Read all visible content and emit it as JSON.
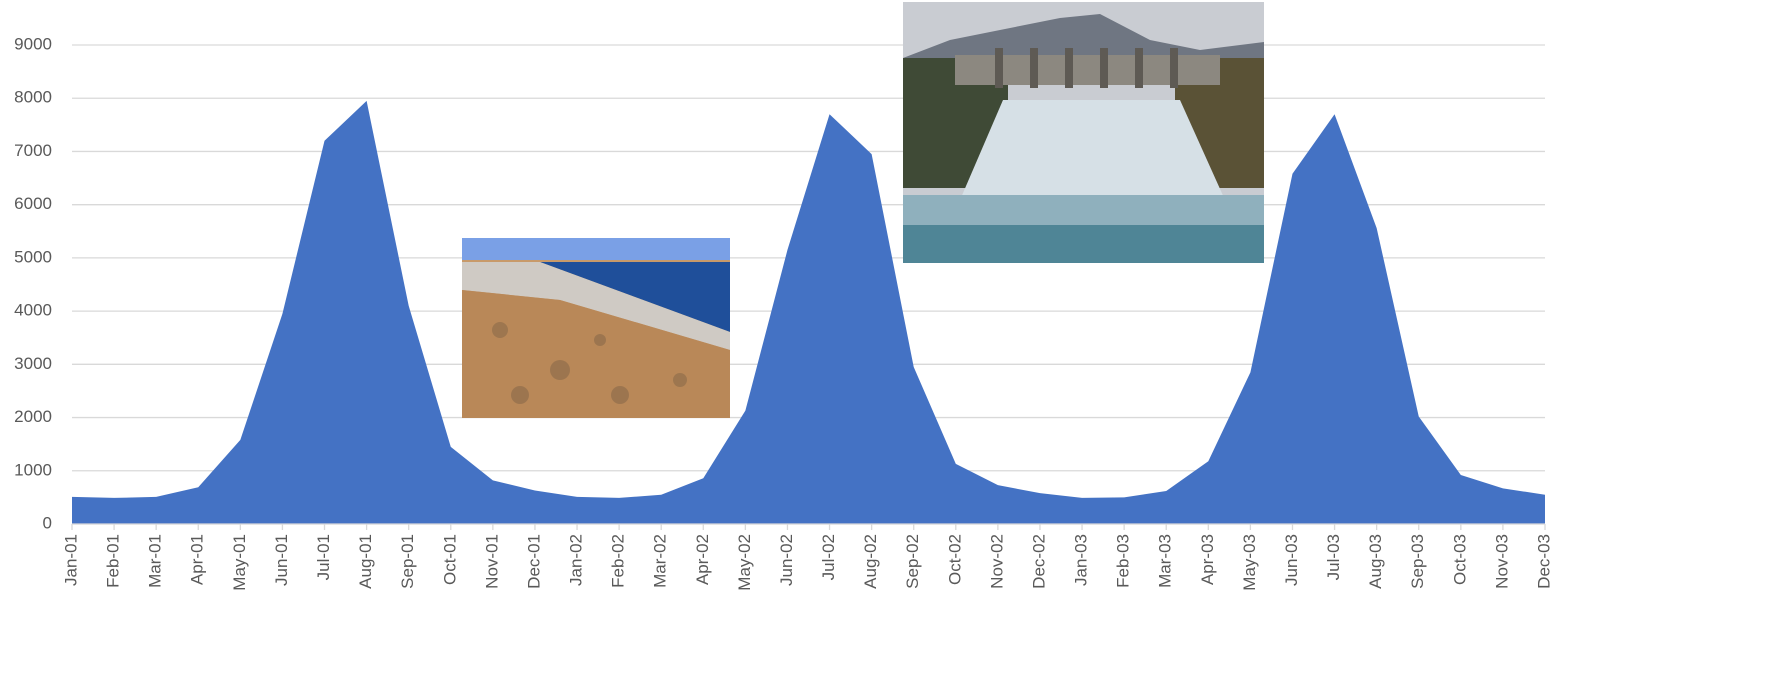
{
  "chart_data": {
    "type": "area",
    "categories": [
      "Jan-01",
      "Feb-01",
      "Mar-01",
      "Apr-01",
      "May-01",
      "Jun-01",
      "Jul-01",
      "Aug-01",
      "Sep-01",
      "Oct-01",
      "Nov-01",
      "Dec-01",
      "Jan-02",
      "Feb-02",
      "Mar-02",
      "Apr-02",
      "May-02",
      "Jun-02",
      "Jul-02",
      "Aug-02",
      "Sep-02",
      "Oct-02",
      "Nov-02",
      "Dec-02",
      "Jan-03",
      "Feb-03",
      "Mar-03",
      "Apr-03",
      "May-03",
      "Jun-03",
      "Jul-03",
      "Aug-03",
      "Sep-03",
      "Oct-03",
      "Nov-03",
      "Dec-03"
    ],
    "values": [
      510,
      490,
      510,
      690,
      1580,
      3950,
      7200,
      7950,
      4100,
      1450,
      820,
      630,
      510,
      490,
      550,
      860,
      2130,
      5150,
      7700,
      6950,
      2950,
      1130,
      730,
      580,
      490,
      500,
      620,
      1180,
      2850,
      6580,
      7700,
      5560,
      2020,
      920,
      670,
      550
    ],
    "color": "#4472c4",
    "ylim": [
      0,
      9000
    ],
    "yticks": [
      0,
      1000,
      2000,
      3000,
      4000,
      5000,
      6000,
      7000,
      8000,
      9000
    ],
    "grid": true
  }
}
